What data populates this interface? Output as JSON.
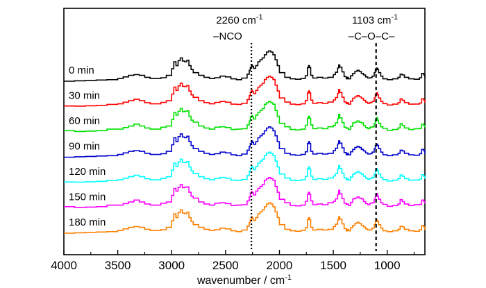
{
  "chart_data": {
    "type": "line",
    "title": "",
    "xlabel": "wavenumber / cm",
    "xlabel_sup": "-1",
    "ylabel": "",
    "xlim": [
      4000,
      650
    ],
    "x_reversed": true,
    "x_ticks": [
      4000,
      3500,
      3000,
      2500,
      2000,
      1500,
      1000
    ],
    "x_tick_labels": [
      "4000",
      "3500",
      "3000",
      "2500",
      "2000",
      "1500",
      "1000"
    ],
    "y_axis_visible": false,
    "grid": false,
    "legend": "inline labels at left of each trace",
    "annotations": [
      {
        "x": 2260,
        "text": "2260 cm",
        "sup": "-1",
        "subtext": "–NCO",
        "line_style": "dotted"
      },
      {
        "x": 1103,
        "text": "1103 cm",
        "sup": "-1",
        "subtext": "–C–O–C–",
        "line_style": "dashed"
      }
    ],
    "series": [
      {
        "name": "0 min",
        "color": "#000000",
        "offset": 6
      },
      {
        "name": "30 min",
        "color": "#ff0000",
        "offset": 5
      },
      {
        "name": "60 min",
        "color": "#00e000",
        "offset": 4
      },
      {
        "name": "90 min",
        "color": "#0000cc",
        "offset": 3
      },
      {
        "name": "120 min",
        "color": "#00ffff",
        "offset": 2
      },
      {
        "name": "150 min",
        "color": "#ff00ff",
        "offset": 1
      },
      {
        "name": "180 min",
        "color": "#ff8000",
        "offset": 0
      }
    ],
    "profile_x": [
      4000,
      3900,
      3800,
      3700,
      3600,
      3500,
      3450,
      3400,
      3350,
      3300,
      3250,
      3200,
      3100,
      3050,
      3000,
      2980,
      2960,
      2940,
      2920,
      2900,
      2880,
      2860,
      2840,
      2820,
      2800,
      2750,
      2700,
      2650,
      2600,
      2550,
      2500,
      2450,
      2400,
      2350,
      2300,
      2280,
      2270,
      2260,
      2250,
      2240,
      2220,
      2200,
      2180,
      2160,
      2140,
      2120,
      2100,
      2080,
      2060,
      2040,
      2020,
      2000,
      1950,
      1900,
      1850,
      1800,
      1760,
      1740,
      1730,
      1720,
      1710,
      1690,
      1650,
      1600,
      1550,
      1500,
      1480,
      1460,
      1450,
      1440,
      1420,
      1400,
      1380,
      1370,
      1360,
      1340,
      1320,
      1300,
      1280,
      1260,
      1240,
      1220,
      1200,
      1180,
      1160,
      1140,
      1120,
      1110,
      1100,
      1090,
      1080,
      1060,
      1040,
      1000,
      950,
      900,
      880,
      860,
      840,
      800,
      750,
      700,
      680,
      660,
      650
    ],
    "profile_y": [
      0,
      0.1,
      0.2,
      0.3,
      0.4,
      0.7,
      1.1,
      1.5,
      1.7,
      1.5,
      1.0,
      0.7,
      0.9,
      1.5,
      3.2,
      5.0,
      4.0,
      5.3,
      6.0,
      5.2,
      5.0,
      5.4,
      4.0,
      3.0,
      2.2,
      1.5,
      1.0,
      0.7,
      0.9,
      1.3,
      1.1,
      0.6,
      0.4,
      0.8,
      1.8,
      2.8,
      3.5,
      4.2,
      3.8,
      3.3,
      4.0,
      5.0,
      5.5,
      6.0,
      6.8,
      7.5,
      7.8,
      7.5,
      6.8,
      5.5,
      4.0,
      2.2,
      1.0,
      0.6,
      0.5,
      0.7,
      1.4,
      3.5,
      4.0,
      3.5,
      1.5,
      0.8,
      1.0,
      0.8,
      1.0,
      1.7,
      2.3,
      3.4,
      4.2,
      3.6,
      2.4,
      1.2,
      0.6,
      1.0,
      0.6,
      1.4,
      2.0,
      2.5,
      2.8,
      2.5,
      2.0,
      1.6,
      1.1,
      0.8,
      0.9,
      1.3,
      2.2,
      3.0,
      3.4,
      3.0,
      2.2,
      1.3,
      0.6,
      0.4,
      0.6,
      1.0,
      1.8,
      1.6,
      1.0,
      0.6,
      0.5,
      0.9,
      2.0,
      1.6,
      0.8
    ]
  }
}
